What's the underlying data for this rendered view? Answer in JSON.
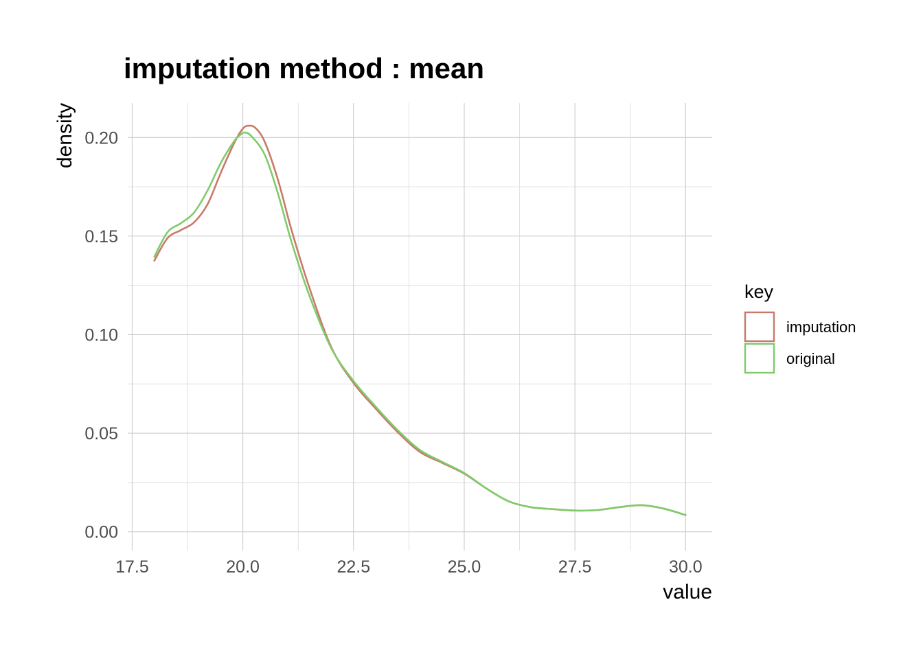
{
  "chart_data": {
    "type": "line",
    "title": "imputation method : mean",
    "xlabel": "value",
    "ylabel": "density",
    "xlim": [
      17.4,
      30.6
    ],
    "ylim": [
      -0.0095,
      0.2175
    ],
    "x_ticks": [
      17.5,
      20.0,
      22.5,
      25.0,
      27.5,
      30.0
    ],
    "x_tick_labels": [
      "17.5",
      "20.0",
      "22.5",
      "25.0",
      "27.5",
      "30.0"
    ],
    "y_ticks": [
      0.0,
      0.05,
      0.1,
      0.15,
      0.2
    ],
    "y_tick_labels": [
      "0.00",
      "0.05",
      "0.10",
      "0.15",
      "0.20"
    ],
    "grid": true,
    "legend": {
      "title": "key",
      "placement": "right"
    },
    "series": [
      {
        "name": "imputation",
        "color": "#c87a6a",
        "x": [
          18.0,
          18.3,
          18.6,
          18.9,
          19.2,
          19.5,
          19.8,
          20.0,
          20.15,
          20.3,
          20.5,
          20.8,
          21.1,
          21.5,
          22.0,
          22.5,
          23.0,
          23.5,
          24.0,
          24.5,
          25.0,
          25.5,
          26.0,
          26.5,
          27.0,
          27.5,
          28.0,
          28.5,
          29.0,
          29.5,
          30.0
        ],
        "values": [
          0.1375,
          0.149,
          0.153,
          0.157,
          0.166,
          0.182,
          0.197,
          0.2045,
          0.206,
          0.2045,
          0.1975,
          0.178,
          0.153,
          0.124,
          0.0935,
          0.0755,
          0.0625,
          0.0505,
          0.0405,
          0.035,
          0.0295,
          0.022,
          0.0155,
          0.0125,
          0.0115,
          0.0108,
          0.011,
          0.0125,
          0.0135,
          0.0118,
          0.0085
        ]
      },
      {
        "name": "original",
        "color": "#7fcb6a",
        "x": [
          18.0,
          18.3,
          18.6,
          18.9,
          19.2,
          19.5,
          19.8,
          19.95,
          20.05,
          20.2,
          20.5,
          20.8,
          21.1,
          21.5,
          22.0,
          22.5,
          23.0,
          23.5,
          24.0,
          24.5,
          25.0,
          25.5,
          26.0,
          26.5,
          27.0,
          27.5,
          28.0,
          28.5,
          29.0,
          29.5,
          30.0
        ],
        "values": [
          0.1395,
          0.152,
          0.1565,
          0.162,
          0.173,
          0.187,
          0.198,
          0.2015,
          0.2025,
          0.2005,
          0.191,
          0.171,
          0.147,
          0.12,
          0.093,
          0.0765,
          0.0635,
          0.0515,
          0.0415,
          0.0355,
          0.0298,
          0.022,
          0.0155,
          0.0125,
          0.0115,
          0.0108,
          0.011,
          0.0125,
          0.0135,
          0.0118,
          0.0085
        ]
      }
    ]
  }
}
